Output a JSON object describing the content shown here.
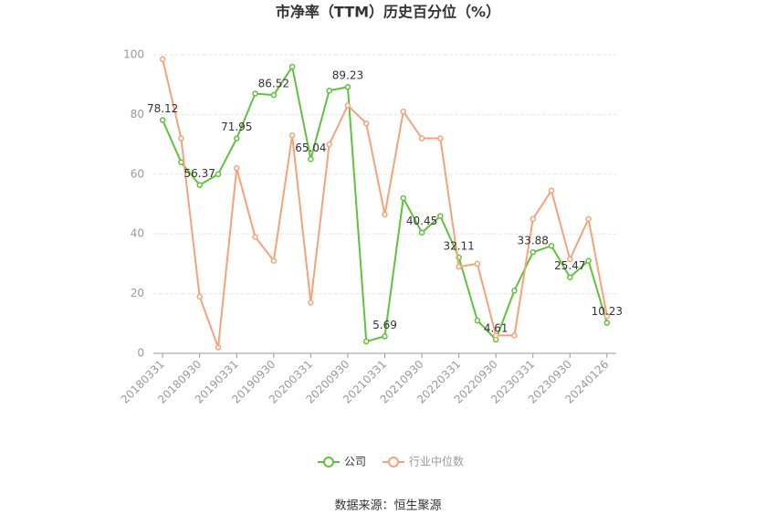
{
  "chart_data": {
    "type": "line",
    "title": "市净率（TTM）历史百分位（%）",
    "source": "数据来源：恒生聚源",
    "categories": [
      "20180331",
      null,
      "20180930",
      null,
      "20190331",
      null,
      "20190930",
      null,
      "20200331",
      null,
      "20200930",
      null,
      "20210331",
      null,
      "20210930",
      null,
      "20220331",
      null,
      "20220930",
      null,
      "20230331",
      null,
      "20230930",
      null,
      "20240126"
    ],
    "series": [
      {
        "name": "公司",
        "color": "#5dc43a",
        "values": [
          78.12,
          64,
          56.37,
          60,
          71.95,
          87,
          86.52,
          96,
          65.04,
          88,
          89.23,
          4,
          5.69,
          52,
          40.45,
          46,
          32.11,
          11,
          4.61,
          21,
          33.88,
          36,
          25.47,
          31,
          10.23
        ],
        "value_labels": [
          "78.12",
          null,
          "56.37",
          null,
          "71.95",
          null,
          "86.52",
          null,
          "65.04",
          null,
          "89.23",
          null,
          "5.69",
          null,
          "40.45",
          null,
          "32.11",
          null,
          "4.61",
          null,
          "33.88",
          null,
          "25.47",
          null,
          "10.23"
        ]
      },
      {
        "name": "行业中位数",
        "color": "#f5a27a",
        "values": [
          98.5,
          72,
          19,
          2,
          62,
          39,
          31,
          73,
          17,
          70,
          83,
          77,
          46.5,
          81,
          72,
          72,
          29,
          30,
          6,
          6,
          45,
          54.5,
          31.5,
          45,
          12.5
        ]
      }
    ],
    "ylim": [
      0,
      100
    ],
    "yticks": [
      0,
      20,
      40,
      60,
      80,
      100
    ],
    "grid": true,
    "legend": "bottom"
  }
}
